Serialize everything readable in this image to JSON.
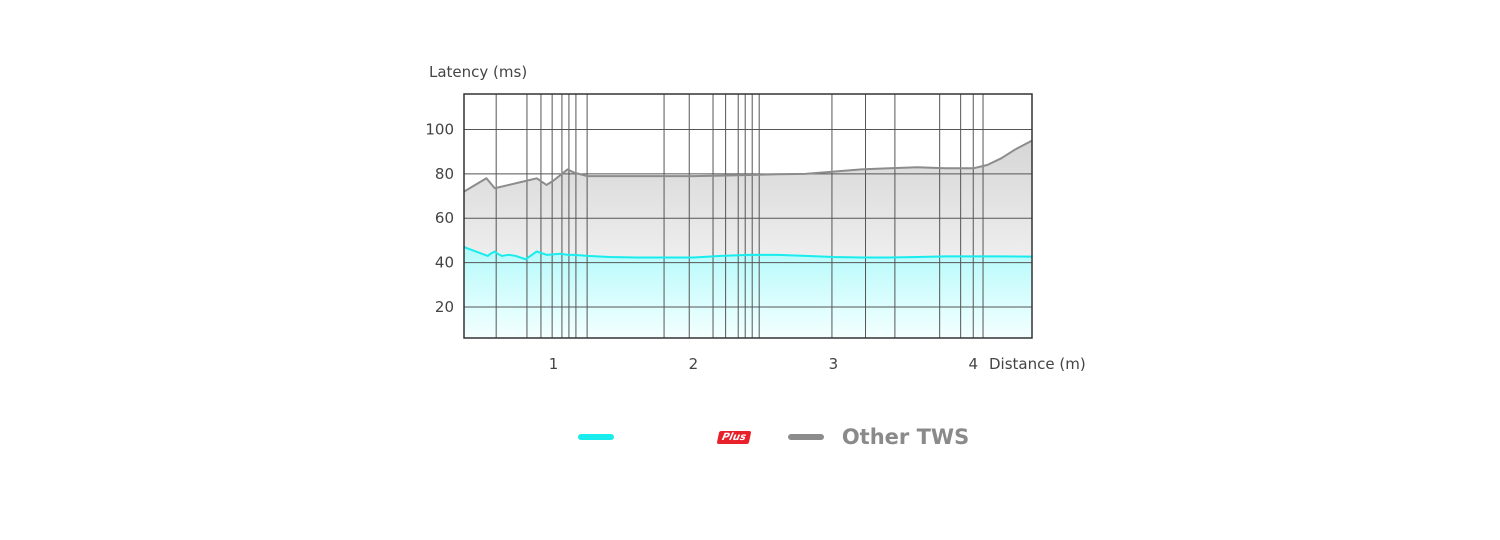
{
  "chart_data": {
    "type": "area",
    "ylabel": "Latency (ms)",
    "xlabel": "Distance (m)",
    "ylim": [
      6,
      116
    ],
    "xlim": [
      0.36,
      4.42
    ],
    "yticks": [
      20,
      40,
      60,
      80,
      100
    ],
    "xticks": [
      1,
      2,
      3,
      4
    ],
    "vertical_grid_x": [
      0.59,
      0.81,
      0.91,
      0.99,
      1.06,
      1.11,
      1.16,
      1.24,
      1.79,
      1.97,
      2.14,
      2.23,
      2.32,
      2.37,
      2.42,
      2.47,
      2.99,
      3.23,
      3.44,
      3.76,
      3.91,
      4.0,
      4.07
    ],
    "grid": true,
    "legend_position": "bottom-center",
    "series": [
      {
        "name": "",
        "color": "#19ecec",
        "x": [
          0.36,
          0.53,
          0.55,
          0.58,
          0.6,
          0.63,
          0.68,
          0.73,
          0.8,
          0.88,
          0.95,
          1.05,
          1.1,
          1.15,
          1.24,
          1.4,
          1.6,
          1.8,
          2.0,
          2.2,
          2.4,
          2.6,
          2.8,
          3.0,
          3.2,
          3.4,
          3.6,
          3.8,
          4.0,
          4.1,
          4.2,
          4.42
        ],
        "values": [
          47,
          43,
          44,
          45,
          44,
          43,
          43.5,
          43,
          41.5,
          45,
          43.5,
          44,
          43.5,
          43.5,
          43,
          42.5,
          42.3,
          42.3,
          42.3,
          43,
          43.5,
          43.5,
          43,
          42.5,
          42.3,
          42.3,
          42.5,
          42.8,
          42.8,
          42.8,
          42.8,
          42.7
        ]
      },
      {
        "name": "Other TWS",
        "color": "#8c8c8c",
        "x": [
          0.36,
          0.52,
          0.58,
          0.68,
          0.78,
          0.88,
          0.95,
          1.0,
          1.1,
          1.15,
          1.24,
          1.4,
          1.6,
          1.8,
          2.0,
          2.2,
          2.4,
          2.6,
          2.8,
          3.0,
          3.2,
          3.4,
          3.6,
          3.8,
          4.0,
          4.1,
          4.2,
          4.3,
          4.42
        ],
        "values": [
          72,
          78,
          73.5,
          75,
          76.5,
          78,
          75,
          77,
          82,
          80.5,
          79,
          79,
          79,
          79,
          79,
          79.2,
          79.5,
          79.8,
          80,
          81,
          82,
          82.5,
          83,
          82.5,
          82.5,
          84,
          87,
          91,
          95
        ]
      }
    ]
  },
  "legend": {
    "badge_text": "Plus",
    "brand_color": "#19ecec",
    "other_color": "#8c8c8c",
    "other_label": "Other TWS"
  }
}
